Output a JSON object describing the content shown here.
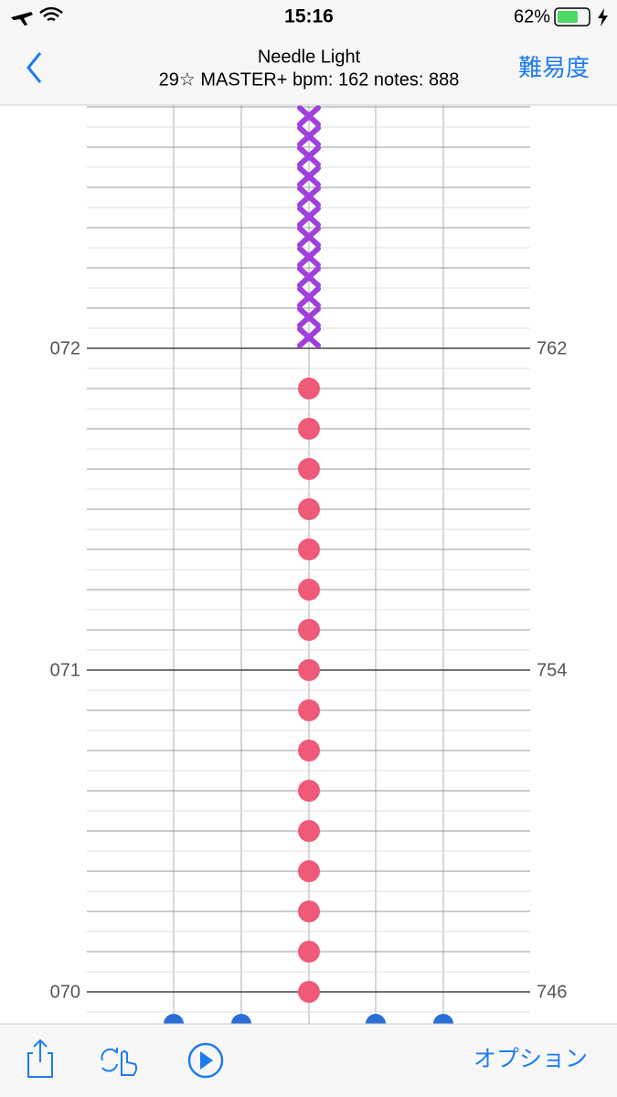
{
  "status_bar": {
    "time": "15:16",
    "battery": "62%"
  },
  "nav": {
    "title": "Needle Light",
    "subtitle": "29☆ MASTER+ bpm: 162 notes: 888",
    "difficulty": "難易度"
  },
  "chart": {
    "left_labels": [
      "072",
      "071",
      "070"
    ],
    "right_labels": [
      "762",
      "754",
      "746"
    ]
  },
  "toolbar": {
    "options": "オプション"
  }
}
